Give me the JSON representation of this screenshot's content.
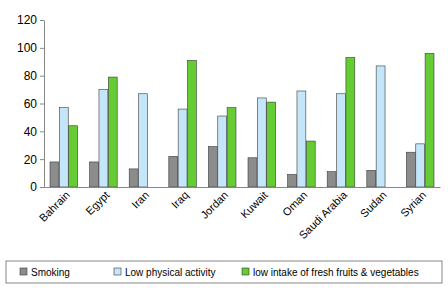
{
  "chart_data": {
    "type": "bar",
    "categories": [
      "Bahrain",
      "Egypt",
      "Iran",
      "Iraq",
      "Jordan",
      "Kuwait",
      "Oman",
      "Saudi Arabia",
      "Sudan",
      "Syrian"
    ],
    "series": [
      {
        "name": "Smoking",
        "color": "#8c8c8c",
        "values": [
          18,
          18,
          13,
          22,
          29,
          21,
          9,
          11,
          12,
          25
        ]
      },
      {
        "name": "Low physical activity",
        "color": "#c4e6f8",
        "values": [
          57,
          70,
          67,
          56,
          51,
          64,
          69,
          67,
          87,
          31
        ]
      },
      {
        "name": "low intake of fresh fruits & vegetables",
        "color": "#66cc33",
        "values": [
          44,
          79,
          null,
          91,
          57,
          61,
          33,
          93,
          null,
          96
        ]
      }
    ],
    "ylim": [
      0,
      120
    ],
    "yticks": [
      0,
      20,
      40,
      60,
      80,
      100,
      120
    ],
    "grid": false,
    "legend": "bottom"
  }
}
